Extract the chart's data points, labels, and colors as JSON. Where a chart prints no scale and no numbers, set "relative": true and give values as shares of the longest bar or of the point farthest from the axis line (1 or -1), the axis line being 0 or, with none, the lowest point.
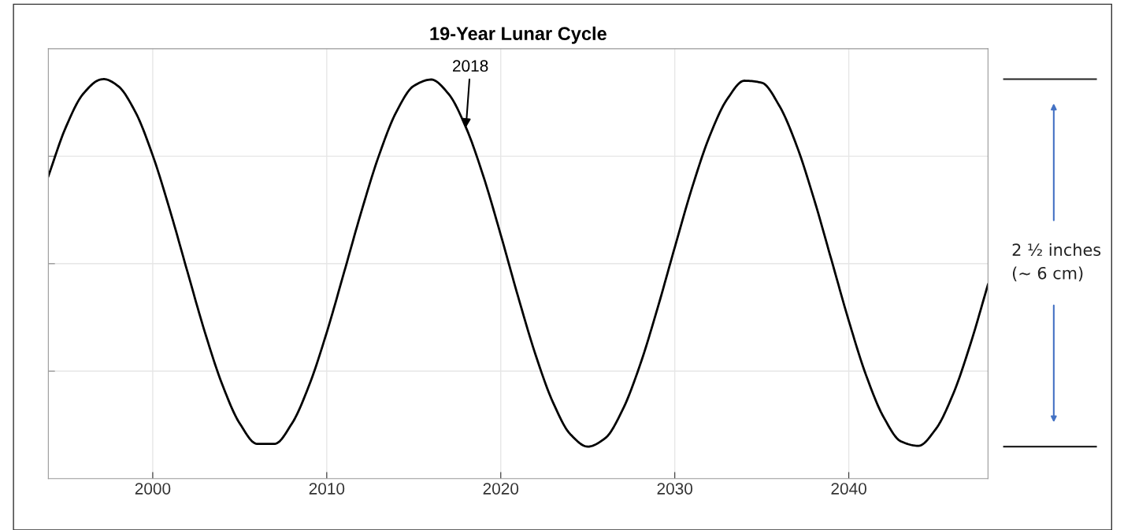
{
  "chart_data": {
    "type": "line",
    "title": "19-Year Lunar Cycle",
    "relative": true,
    "grid": true,
    "tick_labels": "x",
    "marker": "none",
    "line_style": "solid",
    "x": [
      1994,
      1995,
      1996,
      1997,
      1997.2,
      1998,
      1999,
      2000,
      2001,
      2002,
      2003,
      2004,
      2005,
      2006,
      2007,
      2008,
      2009,
      2010,
      2011,
      2012,
      2013,
      2014,
      2015,
      2016,
      2017,
      2018,
      2019,
      2020,
      2021,
      2022,
      2023,
      2024,
      2025,
      2026,
      2027,
      2028,
      2029,
      2030,
      2031,
      2032,
      2033,
      2034,
      2035,
      2036,
      2037,
      2038,
      2039,
      2040,
      2041,
      2042,
      2043,
      2044,
      2045,
      2046,
      2047,
      2048
    ],
    "series": [
      {
        "color": "#000000",
        "values": [
          0.757,
          0.879,
          0.963,
          0.999,
          1.0,
          0.983,
          0.918,
          0.809,
          0.67,
          0.517,
          0.366,
          0.235,
          0.138,
          0.087,
          0.087,
          0.138,
          0.235,
          0.366,
          0.517,
          0.67,
          0.809,
          0.918,
          0.983,
          0.999,
          0.963,
          0.879,
          0.757,
          0.61,
          0.455,
          0.31,
          0.191,
          0.111,
          0.08,
          0.101,
          0.172,
          0.284,
          0.425,
          0.579,
          0.729,
          0.857,
          0.949,
          0.996,
          0.991,
          0.934,
          0.834,
          0.7,
          0.548,
          0.395,
          0.258,
          0.154,
          0.093,
          0.082,
          0.124,
          0.212,
          0.338,
          0.486
        ]
      }
    ],
    "xlim": [
      1994,
      2048
    ],
    "xticks": [
      2000,
      2010,
      2020,
      2030,
      2040
    ],
    "annotations": [
      {
        "text": "2018",
        "x": 2018,
        "y": 0.879
      },
      "2 ½ inches\n(~ 6 cm)"
    ]
  }
}
